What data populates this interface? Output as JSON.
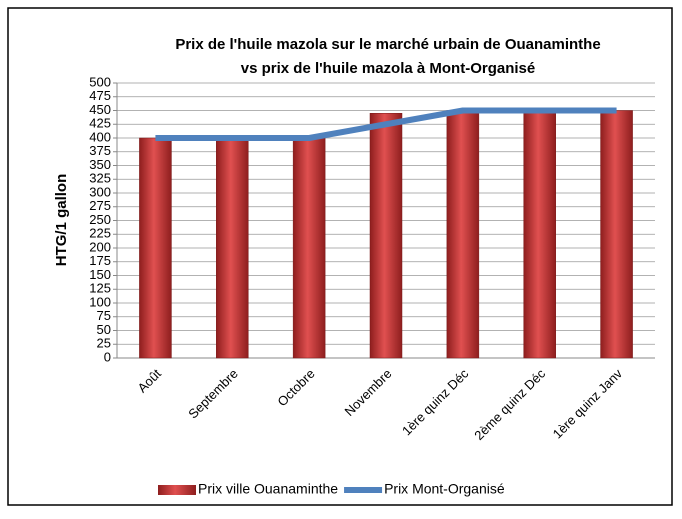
{
  "chart_data": {
    "type": "bar",
    "title": [
      "Prix de l'huile mazola sur le marché urbain de Ouanaminthe",
      "vs prix de l'huile mazola à Mont-Organisé"
    ],
    "y_label": "HTG/1 gallon",
    "categories": [
      "Août",
      "Septembre",
      "Octobre",
      "Novembre",
      "1ère quinz Déc",
      "2ème quinz Déc",
      "1ère quinz Janv"
    ],
    "series": [
      {
        "name": "Prix ville Ouanaminthe",
        "type": "bar",
        "color": "#d03a3a",
        "values": [
          400,
          400,
          400,
          445,
          450,
          450,
          450
        ]
      },
      {
        "name": "Prix Mont-Organisé",
        "type": "line",
        "color": "#4f81bd",
        "values": [
          400,
          400,
          400,
          425,
          450,
          450,
          450
        ]
      }
    ],
    "ylim": [
      0,
      500
    ],
    "yticks": [
      0,
      25,
      50,
      75,
      100,
      125,
      150,
      175,
      200,
      225,
      250,
      275,
      300,
      325,
      350,
      375,
      400,
      425,
      450,
      475,
      500
    ],
    "grid": true,
    "legend": "bottom"
  }
}
